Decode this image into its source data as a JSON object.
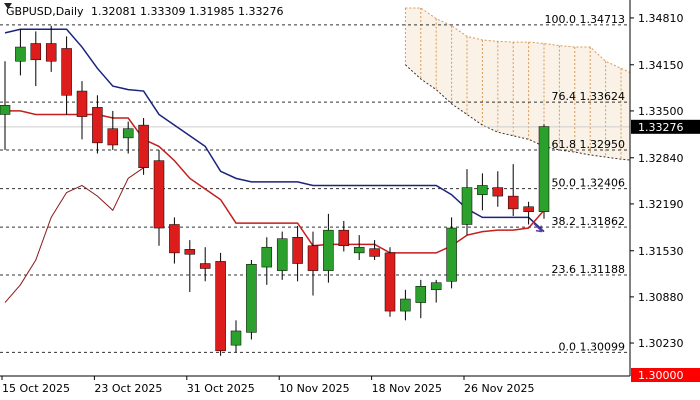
{
  "chart_data": {
    "type": "candlestick",
    "symbol": "GBPUSD,Daily",
    "ohlc_header": "1.32081 1.33309 1.31985 1.33276",
    "ylim": [
      1.2985,
      1.3495
    ],
    "y_ticks": [
      "1.34810",
      "1.34150",
      "1.33500",
      "1.32840",
      "1.32190",
      "1.31530",
      "1.30880",
      "1.30230"
    ],
    "x_labels": [
      {
        "label": "15 Oct 2025",
        "index": 0
      },
      {
        "label": "23 Oct 2025",
        "index": 6
      },
      {
        "label": "31 Oct 2025",
        "index": 12
      },
      {
        "label": "10 Nov 2025",
        "index": 18
      },
      {
        "label": "18 Nov 2025",
        "index": 24
      },
      {
        "label": "26 Nov 2025",
        "index": 30
      }
    ],
    "current_price": "1.33276",
    "low_marker": "1.30000",
    "fib_levels": [
      {
        "label": "100.0 1.34713",
        "price": 1.34713
      },
      {
        "label": "76.4 1.33624",
        "price": 1.33624
      },
      {
        "label": "61.8 1.32950",
        "price": 1.3295
      },
      {
        "label": "50.0 1.32406",
        "price": 1.32406
      },
      {
        "label": "38.2 1.31862",
        "price": 1.31862
      },
      {
        "label": "23.6 1.31188",
        "price": 1.31188
      },
      {
        "label": "0.0 1.30099",
        "price": 1.30099
      }
    ],
    "candles": [
      {
        "date": "15 Oct",
        "o": 1.3345,
        "h": 1.342,
        "l": 1.3295,
        "c": 1.3358
      },
      {
        "date": "16 Oct",
        "o": 1.342,
        "h": 1.3465,
        "l": 1.34,
        "c": 1.344
      },
      {
        "date": "17 Oct",
        "o": 1.3445,
        "h": 1.3462,
        "l": 1.3385,
        "c": 1.3422
      },
      {
        "date": "20 Oct",
        "o": 1.3445,
        "h": 1.347,
        "l": 1.3405,
        "c": 1.342
      },
      {
        "date": "21 Oct",
        "o": 1.3438,
        "h": 1.3455,
        "l": 1.3345,
        "c": 1.3372
      },
      {
        "date": "22 Oct",
        "o": 1.3378,
        "h": 1.3392,
        "l": 1.331,
        "c": 1.3342
      },
      {
        "date": "23 Oct",
        "o": 1.3355,
        "h": 1.3372,
        "l": 1.329,
        "c": 1.3305
      },
      {
        "date": "24 Oct",
        "o": 1.3325,
        "h": 1.335,
        "l": 1.3295,
        "c": 1.3302
      },
      {
        "date": "27 Oct",
        "o": 1.3312,
        "h": 1.3335,
        "l": 1.329,
        "c": 1.3325
      },
      {
        "date": "28 Oct",
        "o": 1.333,
        "h": 1.334,
        "l": 1.326,
        "c": 1.327
      },
      {
        "date": "29 Oct",
        "o": 1.328,
        "h": 1.3295,
        "l": 1.316,
        "c": 1.3185
      },
      {
        "date": "30 Oct",
        "o": 1.319,
        "h": 1.32,
        "l": 1.3135,
        "c": 1.315
      },
      {
        "date": "31 Oct",
        "o": 1.3155,
        "h": 1.3168,
        "l": 1.3095,
        "c": 1.3148
      },
      {
        "date": "03 Nov",
        "o": 1.3135,
        "h": 1.3158,
        "l": 1.311,
        "c": 1.3128
      },
      {
        "date": "04 Nov",
        "o": 1.3138,
        "h": 1.315,
        "l": 1.3005,
        "c": 1.3012
      },
      {
        "date": "05 Nov",
        "o": 1.302,
        "h": 1.3055,
        "l": 1.301,
        "c": 1.304
      },
      {
        "date": "06 Nov",
        "o": 1.3038,
        "h": 1.314,
        "l": 1.3028,
        "c": 1.3134
      },
      {
        "date": "07 Nov",
        "o": 1.313,
        "h": 1.3172,
        "l": 1.3105,
        "c": 1.3158
      },
      {
        "date": "10 Nov",
        "o": 1.3125,
        "h": 1.318,
        "l": 1.3112,
        "c": 1.317
      },
      {
        "date": "11 Nov",
        "o": 1.3172,
        "h": 1.3188,
        "l": 1.311,
        "c": 1.3135
      },
      {
        "date": "12 Nov",
        "o": 1.316,
        "h": 1.318,
        "l": 1.309,
        "c": 1.3125
      },
      {
        "date": "13 Nov",
        "o": 1.3125,
        "h": 1.3205,
        "l": 1.3108,
        "c": 1.3182
      },
      {
        "date": "14 Nov",
        "o": 1.3182,
        "h": 1.3195,
        "l": 1.3152,
        "c": 1.316
      },
      {
        "date": "17 Nov",
        "o": 1.315,
        "h": 1.3175,
        "l": 1.314,
        "c": 1.3158
      },
      {
        "date": "18 Nov",
        "o": 1.3156,
        "h": 1.3168,
        "l": 1.314,
        "c": 1.3145
      },
      {
        "date": "19 Nov",
        "o": 1.315,
        "h": 1.3158,
        "l": 1.306,
        "c": 1.3068
      },
      {
        "date": "20 Nov",
        "o": 1.3068,
        "h": 1.3098,
        "l": 1.3055,
        "c": 1.3085
      },
      {
        "date": "21 Nov",
        "o": 1.308,
        "h": 1.3112,
        "l": 1.3058,
        "c": 1.3103
      },
      {
        "date": "24 Nov",
        "o": 1.3098,
        "h": 1.3112,
        "l": 1.308,
        "c": 1.3108
      },
      {
        "date": "25 Nov",
        "o": 1.311,
        "h": 1.32,
        "l": 1.31,
        "c": 1.3185
      },
      {
        "date": "26 Nov",
        "o": 1.319,
        "h": 1.3268,
        "l": 1.3175,
        "c": 1.3242
      },
      {
        "date": "27 Nov",
        "o": 1.3232,
        "h": 1.3262,
        "l": 1.321,
        "c": 1.3245
      },
      {
        "date": "28 Nov",
        "o": 1.3242,
        "h": 1.3265,
        "l": 1.3215,
        "c": 1.323
      },
      {
        "date": "01 Dec",
        "o": 1.323,
        "h": 1.3275,
        "l": 1.3202,
        "c": 1.3212
      },
      {
        "date": "02 Dec",
        "o": 1.3215,
        "h": 1.3222,
        "l": 1.319,
        "c": 1.3208
      },
      {
        "date": "03 Dec",
        "o": 1.3208,
        "h": 1.3331,
        "l": 1.3198,
        "c": 1.3328
      }
    ],
    "tenkan": [
      1.335,
      1.335,
      1.3345,
      1.3345,
      1.3345,
      1.3345,
      1.3345,
      1.334,
      1.334,
      1.331,
      1.33,
      1.328,
      1.3255,
      1.324,
      1.3225,
      1.3192,
      1.3192,
      1.3192,
      1.3192,
      1.3192,
      1.316,
      1.3162,
      1.3162,
      1.3162,
      1.3162,
      1.315,
      1.315,
      1.315,
      1.315,
      1.316,
      1.3175,
      1.318,
      1.3182,
      1.3182,
      1.3185,
      1.321
    ],
    "kijun": [
      1.346,
      1.3465,
      1.3465,
      1.3465,
      1.3465,
      1.344,
      1.341,
      1.3385,
      1.338,
      1.3378,
      1.3345,
      1.333,
      1.3315,
      1.33,
      1.3265,
      1.3255,
      1.325,
      1.325,
      1.325,
      1.325,
      1.3245,
      1.3245,
      1.3245,
      1.3245,
      1.3245,
      1.3245,
      1.3245,
      1.3245,
      1.3245,
      1.3232,
      1.3212,
      1.32,
      1.32,
      1.32,
      1.32,
      1.318
    ],
    "chikou": [
      1.308,
      1.3105,
      1.314,
      1.32,
      1.3235,
      1.3245,
      1.323,
      1.321,
      1.3255,
      1.327
    ],
    "cloud_upper": [
      1.3495,
      1.3495,
      1.348,
      1.347,
      1.3455,
      1.345,
      1.3448,
      1.3447,
      1.3447,
      1.3445,
      1.3442,
      1.344,
      1.344,
      1.342,
      1.341,
      1.34
    ],
    "cloud_lower": [
      1.3415,
      1.3395,
      1.338,
      1.336,
      1.3345,
      1.333,
      1.332,
      1.3315,
      1.331,
      1.33,
      1.3295,
      1.3292,
      1.3288,
      1.3285,
      1.3282,
      1.328
    ],
    "colors": {
      "bull": "#2ca02c",
      "bear": "#dd1c1c",
      "tenkan": "#c41e1e",
      "kijun": "#1a237e",
      "chikou": "#8b1a1a",
      "cloud": "#d99a55",
      "price_tag_bg": "#000000",
      "low_tag_bg": "#ff0000",
      "arrow": "#5b3da6"
    }
  }
}
